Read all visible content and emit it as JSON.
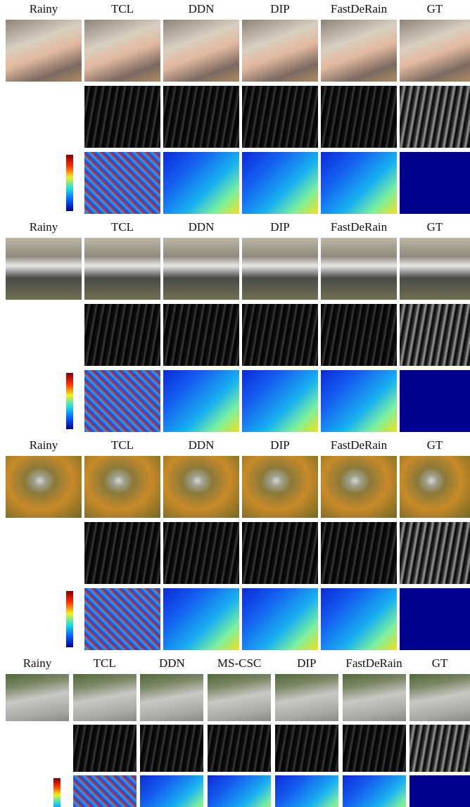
{
  "blocks": [
    {
      "headers": [
        "Rainy",
        "TCL",
        "DDN",
        "DIP",
        "FastDeRain",
        "GT"
      ]
    },
    {
      "headers": [
        "Rainy",
        "TCL",
        "DDN",
        "DIP",
        "FastDeRain",
        "GT"
      ]
    },
    {
      "headers": [
        "Rainy",
        "TCL",
        "DDN",
        "DIP",
        "FastDeRain",
        "GT"
      ]
    },
    {
      "headers": [
        "Rainy",
        "TCL",
        "DDN",
        "MS-CSC",
        "DIP",
        "FastDeRain",
        "GT"
      ]
    }
  ]
}
